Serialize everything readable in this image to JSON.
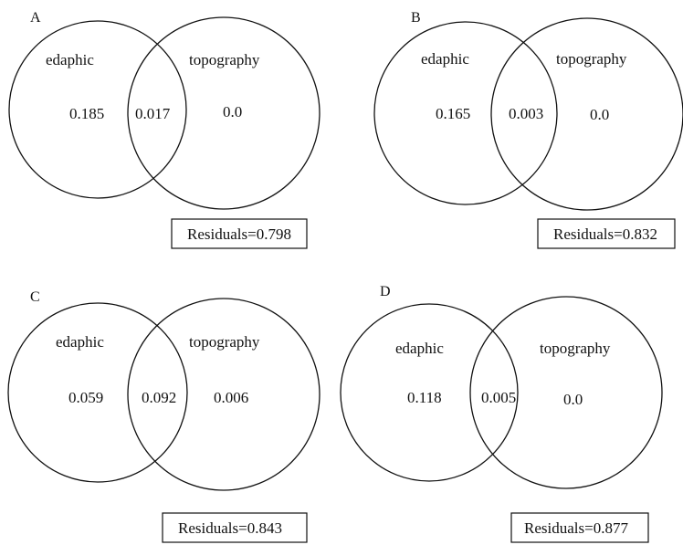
{
  "panels": [
    {
      "letter": "A",
      "left_label": "edaphic",
      "right_label": "topography",
      "left_value": "0.185",
      "overlap_value": "0.017",
      "right_value": "0.0",
      "residuals": "Residuals=0.798"
    },
    {
      "letter": "B",
      "left_label": "edaphic",
      "right_label": "topography",
      "left_value": "0.165",
      "overlap_value": "0.003",
      "right_value": "0.0",
      "residuals": "Residuals=0.832"
    },
    {
      "letter": "C",
      "left_label": "edaphic",
      "right_label": "topography",
      "left_value": "0.059",
      "overlap_value": "0.092",
      "right_value": "0.006",
      "residuals": "Residuals=0.843"
    },
    {
      "letter": "D",
      "left_label": "edaphic",
      "right_label": "topography",
      "left_value": "0.118",
      "overlap_value": "0.005",
      "right_value": "0.0",
      "residuals": "Residuals=0.877"
    }
  ]
}
